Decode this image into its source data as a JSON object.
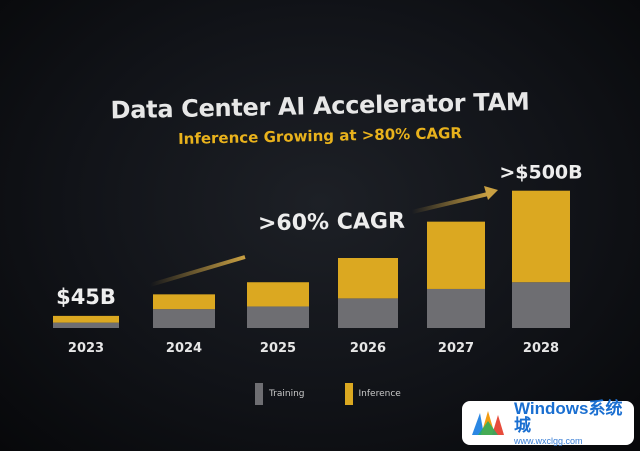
{
  "header": {
    "title": "Data Center AI Accelerator TAM",
    "subtitle": "Inference Growing at >80% CAGR"
  },
  "annotations": {
    "cagr_label": ">60% CAGR",
    "first_value_label": "$45B",
    "last_value_label": ">$500B"
  },
  "legend": {
    "training_label": "Training",
    "inference_label": "Inference"
  },
  "colors": {
    "training": "#6e6e72",
    "inference": "#dba821",
    "title": "#e7e7e7",
    "subtitle": "#e9b21c"
  },
  "watermark": {
    "main": "Windows系统城",
    "sub": "www.wxclgg.com"
  },
  "chart_data": {
    "type": "bar",
    "stacked": true,
    "title": "Data Center AI Accelerator TAM",
    "subtitle": "Inference Growing at >80% CAGR",
    "categories": [
      "2023",
      "2024",
      "2025",
      "2026",
      "2027",
      "2028"
    ],
    "series": [
      {
        "name": "Training",
        "values": [
          20,
          70,
          80,
          110,
          145,
          170
        ]
      },
      {
        "name": "Inference",
        "values": [
          25,
          55,
          90,
          150,
          250,
          340
        ]
      }
    ],
    "data_labels": [
      {
        "category": "2023",
        "text": "$45B"
      },
      {
        "category": "2028",
        "text": ">$500B"
      }
    ],
    "ylim": [
      0,
      520
    ],
    "xlabel": "",
    "ylabel": "",
    "grid": false,
    "legend_position": "bottom-center"
  }
}
